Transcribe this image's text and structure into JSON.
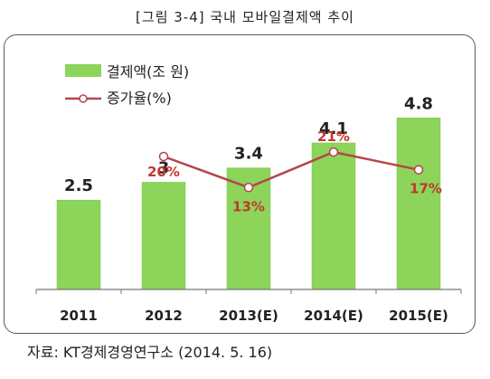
{
  "caption": "[그림 3-4] 국내 모바일결제액 추이",
  "source": "자료: KT경제경영연구소 (2014. 5. 16)",
  "colors": {
    "bar": "#8cd45a",
    "line": "#b5454a",
    "marker_fill": "#ffffff",
    "pct_text": "#c0392b"
  },
  "chart_data": {
    "type": "bar",
    "categories": [
      "2011",
      "2012",
      "2013(E)",
      "2014(E)",
      "2015(E)"
    ],
    "series": [
      {
        "name": "결제액(조 원)",
        "type": "bar",
        "values": [
          2.5,
          3,
          3.4,
          4.1,
          4.8
        ],
        "labels": [
          "2.5",
          "3",
          "3.4",
          "4.1",
          "4.8"
        ]
      },
      {
        "name": "증가율(%)",
        "type": "line",
        "values": [
          null,
          20,
          13,
          21,
          17
        ],
        "labels": [
          "",
          "20%",
          "13%",
          "21%",
          "17%"
        ]
      }
    ],
    "ylim": [
      0,
      6.2
    ],
    "y2lim": [
      -10,
      40
    ],
    "legend_position": "top-left",
    "grid": false
  }
}
